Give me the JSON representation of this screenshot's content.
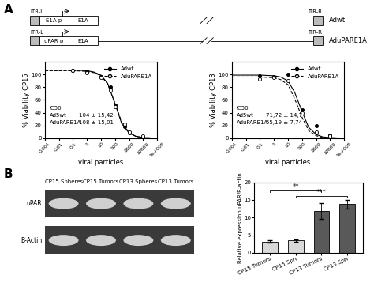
{
  "panel_labels": [
    "A",
    "B"
  ],
  "schematic": {
    "constructs": [
      {
        "name": "Adwt",
        "left": "ITR-L",
        "right": "ITR-R",
        "elements": [
          "E1A p",
          "E1A"
        ]
      },
      {
        "name": "AduPARE1A",
        "left": "ITR-L",
        "right": "ITR-R",
        "elements": [
          "uPAR p",
          "E1A"
        ]
      }
    ]
  },
  "chart_data": [
    {
      "type": "line",
      "y_label": "% Viability CP15",
      "x_label": "viral particles",
      "log": "x",
      "xlim": [
        0.001,
        100000
      ],
      "xticks": [
        {
          "value": 0.001,
          "label": "0,001"
        },
        {
          "value": 0.01,
          "label": "0,01"
        },
        {
          "value": 0.1,
          "label": "0,1"
        },
        1,
        10,
        100,
        1000,
        10000,
        {
          "value": 100000,
          "label": "1e+005"
        }
      ],
      "ylim": [
        0,
        120
      ],
      "yticks": [
        0,
        20,
        40,
        60,
        80,
        100
      ],
      "legend": "upper right",
      "series": [
        {
          "name": "Adwt",
          "color": "#000000",
          "marker": "filled_circle",
          "line_style": "solid",
          "x": [
            0.1,
            1,
            10,
            50,
            100,
            500,
            1000,
            10000
          ],
          "values": [
            107,
            105,
            97,
            80,
            52,
            18,
            8,
            2
          ],
          "fit": {
            "x": [
              0.001,
              0.01,
              0.1,
              1,
              3,
              10,
              30,
              100,
              300,
              1000,
              3000,
              10000,
              100000
            ],
            "values": [
              107,
              107,
              107,
              106,
              104,
              99,
              86,
              54,
              23,
              8,
              3,
              1,
              0
            ]
          }
        },
        {
          "name": "AduPARE1A",
          "color": "#000000",
          "marker": "open_circle",
          "line_style": "dashed",
          "x": [
            0.1,
            1,
            10,
            50,
            100,
            500,
            1000,
            10000
          ],
          "values": [
            106,
            103,
            95,
            75,
            50,
            22,
            10,
            3
          ],
          "fit": {
            "x": [
              0.001,
              0.01,
              0.1,
              1,
              3,
              10,
              30,
              100,
              300,
              1000,
              3000,
              10000,
              100000
            ],
            "values": [
              106,
              106,
              106,
              105,
              103,
              98,
              85,
              55,
              25,
              9,
              3,
              1,
              0
            ]
          }
        }
      ],
      "ic50": {
        "title": "IC50",
        "rows": [
          [
            "Ad5wt",
            "104 ± 15,42"
          ],
          [
            "AduPARE1A",
            "108 ± 15,01"
          ]
        ]
      }
    },
    {
      "type": "line",
      "y_label": "% Viability CP13",
      "x_label": "viral particles",
      "log": "x",
      "xlim": [
        0.001,
        100000
      ],
      "xticks": [
        {
          "value": 0.001,
          "label": "0,001"
        },
        {
          "value": 0.01,
          "label": "0,01"
        },
        {
          "value": 0.1,
          "label": "0,1"
        },
        1,
        10,
        100,
        1000,
        10000,
        {
          "value": 100000,
          "label": "1e+005"
        }
      ],
      "ylim": [
        0,
        120
      ],
      "yticks": [
        0,
        20,
        40,
        60,
        80,
        100
      ],
      "legend": "upper right",
      "series": [
        {
          "name": "Adwt",
          "color": "#000000",
          "marker": "filled_circle",
          "line_style": "solid",
          "x": [
            0.1,
            1,
            10,
            100,
            1000,
            10000
          ],
          "values": [
            98,
            97,
            100,
            45,
            20,
            5
          ],
          "fit": {
            "x": [
              0.001,
              0.01,
              0.1,
              1,
              3,
              10,
              30,
              100,
              300,
              1000,
              3000,
              10000,
              100000
            ],
            "values": [
              99,
              99,
              99,
              98,
              96,
              90,
              72,
              42,
              17,
              6,
              2,
              1,
              0
            ]
          }
        },
        {
          "name": "AduPARE1A",
          "color": "#000000",
          "marker": "open_circle",
          "line_style": "dashed",
          "x": [
            0.1,
            1,
            10,
            100,
            1000,
            10000
          ],
          "values": [
            93,
            95,
            90,
            40,
            10,
            3
          ],
          "fit": {
            "x": [
              0.001,
              0.01,
              0.1,
              1,
              3,
              10,
              30,
              100,
              300,
              1000,
              3000,
              10000,
              100000
            ],
            "values": [
              96,
              96,
              96,
              95,
              92,
              84,
              62,
              33,
              12,
              4,
              1,
              0,
              0
            ]
          }
        }
      ],
      "ic50": {
        "title": "IC50",
        "rows": [
          [
            "Ad5wt",
            "71,72 ± 14,7"
          ],
          [
            "AduPARE1A",
            "55,19 ± 7,74"
          ]
        ]
      }
    },
    {
      "type": "bar",
      "y_label": "Relative expression uPAR/B-actin",
      "categories": [
        "CP15 Tumors",
        "CP15 Sph",
        "CP13 Tumors",
        "CP13 Sph"
      ],
      "values": [
        3.2,
        3.5,
        11.8,
        13.8
      ],
      "errors": [
        0.3,
        0.4,
        2.2,
        1.3
      ],
      "colors": [
        "#d9d9d9",
        "#d9d9d9",
        "#595959",
        "#595959"
      ],
      "ylim": [
        0,
        20
      ],
      "yticks": [
        0,
        5,
        10,
        15,
        20
      ],
      "significance": [
        {
          "between": [
            "CP15 Sph",
            "CP13 Sph"
          ],
          "label": "***"
        },
        {
          "between": [
            "CP15 Tumors",
            "CP13 Tumors"
          ],
          "label": "**"
        }
      ]
    }
  ],
  "gel": {
    "rows": [
      "uPAR",
      "B-Actin"
    ],
    "lanes": [
      "CP15 Spheres",
      "CP15 Tumors",
      "CP13 Spheres",
      "CP13 Tumors"
    ]
  }
}
